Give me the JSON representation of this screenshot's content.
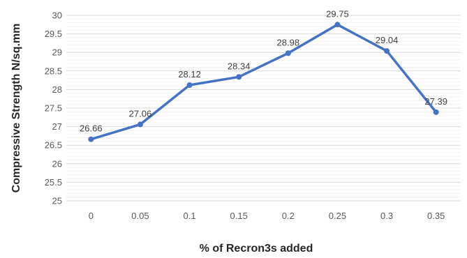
{
  "chart_data": {
    "type": "line",
    "title": "",
    "xlabel": "% of Recron3s added",
    "ylabel": "Compressive Strength N/sq.mm",
    "categories": [
      "0",
      "0.05",
      "0.1",
      "0.15",
      "0.2",
      "0.25",
      "0.3",
      "0.35"
    ],
    "series": [
      {
        "values": [
          26.66,
          27.06,
          28.12,
          28.34,
          28.98,
          29.75,
          29.04,
          27.39
        ]
      }
    ],
    "data_labels": [
      "26.66",
      "27.06",
      "28.12",
      "28.34",
      "28.98",
      "29.75",
      "29.04",
      "27.39"
    ],
    "ylim": [
      25,
      30
    ],
    "yticks": [
      "25",
      "25.5",
      "26",
      "26.5",
      "27",
      "27.5",
      "28",
      "28.5",
      "29",
      "29.5",
      "30"
    ],
    "grid": "horizontal major and minor",
    "legend": "none",
    "line_color": "#4472C4",
    "grid_color": "#D9D9D9",
    "minor_grid_color": "#EFEFEF"
  }
}
